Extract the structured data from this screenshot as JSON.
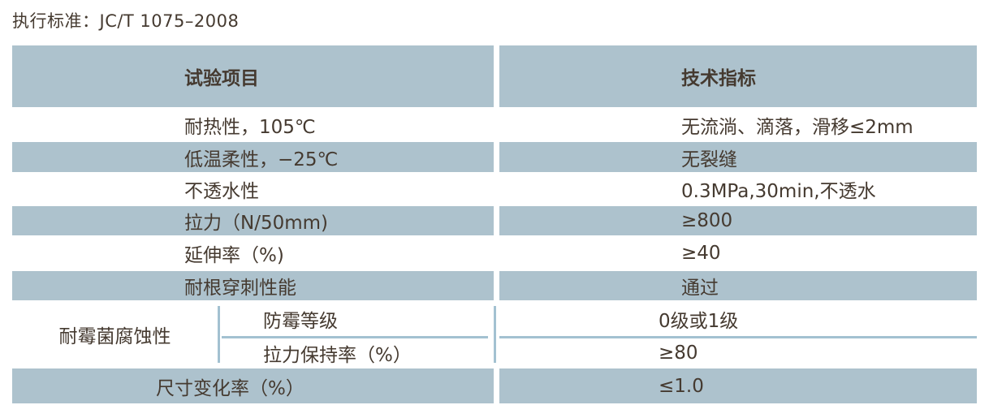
{
  "title": "执行标准：JC/T 1075–2008",
  "colors": {
    "row_blue": "#adc2cd",
    "divider_blue": "#a3c1d1",
    "text": "#453a30",
    "background": "#ffffff"
  },
  "table": {
    "header": {
      "col1": "试验项目",
      "col2": "技术指标"
    },
    "rows": [
      {
        "item": "耐热性，105℃",
        "value": "无流淌、滴落，滑移≤2mm",
        "shade": "white"
      },
      {
        "item": "低温柔性，−25℃",
        "value": "无裂缝",
        "shade": "blue"
      },
      {
        "item": "不透水性",
        "value": "0.3MPa,30min,不透水",
        "shade": "white"
      },
      {
        "item": "拉力（N/50mm)",
        "value": "≥800",
        "shade": "blue"
      },
      {
        "item": "延伸率（%)",
        "value": "≥40",
        "shade": "white"
      },
      {
        "item": "耐根穿刺性能",
        "value": "通过",
        "shade": "blue"
      }
    ],
    "merged_row": {
      "item": "耐霉菌腐蚀性",
      "sub_rows": [
        {
          "label": "防霉等级",
          "value": "0级或1级"
        },
        {
          "label": "拉力保持率（%）",
          "value": "≥80"
        }
      ]
    },
    "last_row": {
      "item": "尺寸变化率（%）",
      "value": "≤1.0",
      "shade": "blue"
    }
  }
}
